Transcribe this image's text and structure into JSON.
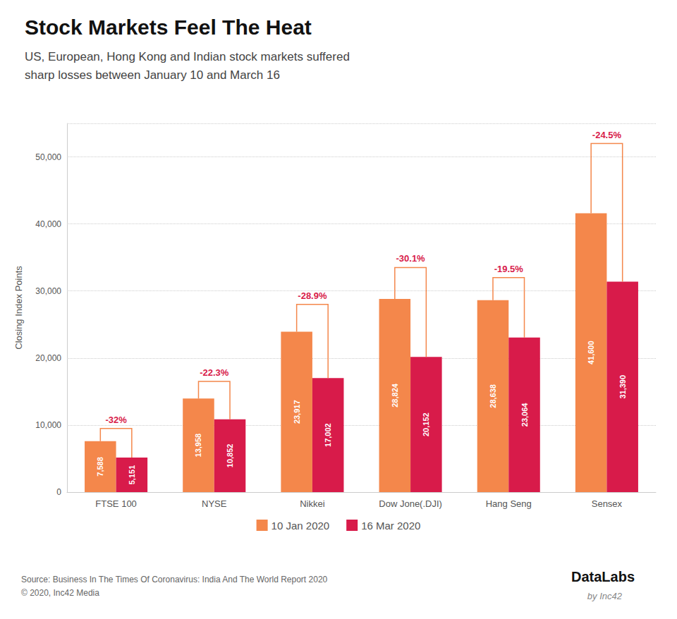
{
  "chart_data": {
    "type": "bar",
    "title": "Stock Markets Feel The Heat",
    "subtitle": "US, European, Hong Kong and Indian stock markets suffered\nsharp losses between January 10 and March 16",
    "categories": [
      "FTSE 100",
      "NYSE",
      "Nikkei",
      "Dow Jone(.DJI)",
      "Hang Seng",
      "Sensex"
    ],
    "series": [
      {
        "name": "10 Jan 2020",
        "color": "#F4874B",
        "values": [
          7588,
          13958,
          23917,
          28824,
          28638,
          41600
        ],
        "value_labels": [
          "7,588",
          "13,958",
          "23,917",
          "28,824",
          "28,638",
          "41,600"
        ]
      },
      {
        "name": "16 Mar 2020",
        "color": "#D81B4A",
        "values": [
          5151,
          10852,
          17002,
          20152,
          23064,
          31390
        ],
        "value_labels": [
          "5,151",
          "10,852",
          "17,002",
          "20,152",
          "23,064",
          "31,390"
        ]
      }
    ],
    "ylabel": "Closing Index Points",
    "ylim": [
      0,
      55000
    ],
    "yticks": [
      0,
      {
        "value": 10000,
        "label": "10,000"
      },
      {
        "value": 20000,
        "label": "20,000"
      },
      {
        "value": 30000,
        "label": "30,000"
      },
      {
        "value": 40000,
        "label": "40,000"
      },
      {
        "value": 50000,
        "label": "50,000"
      }
    ],
    "grid": true,
    "legend": "bottom",
    "data_labels": true,
    "annotations": {
      "texts": [
        "-32%",
        "-22.3%",
        "-28.9%",
        "-30.1%",
        "-19.5%",
        "-24.5%"
      ],
      "bracket_tops": [
        9500,
        16500,
        28000,
        33500,
        32000,
        52000
      ],
      "bracket_color": "#F4874B",
      "text_color": "#D81B4A"
    },
    "source_text": "Source: Business In The Times Of Coronavirus: India And The World Report 2020\n© 2020, Inc42 Media",
    "logo": [
      "DataLabs",
      "by Inc42"
    ]
  }
}
